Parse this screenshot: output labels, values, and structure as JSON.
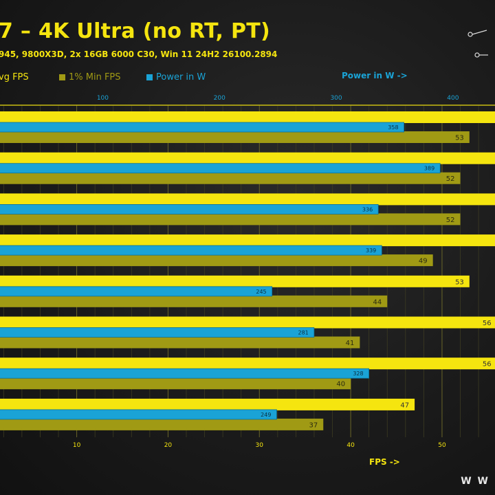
{
  "header": {
    "title": "7 – 4K Ultra (no RT, PT)",
    "subtitle": "945, 9800X3D, 2x 16GB 6000 C30, Win 11 24H2 26100.2894"
  },
  "legend": [
    {
      "label": "vg FPS",
      "color": "#f5e50f"
    },
    {
      "label": "1% Min FPS",
      "color": "#a09a14"
    },
    {
      "label": "Power in W",
      "color": "#1aa3d6"
    }
  ],
  "axes": {
    "fps_title": "FPS ->",
    "power_title": "Power in W ->"
  },
  "watermark": "W W",
  "chart_data": {
    "type": "bar",
    "orientation": "horizontal",
    "x_fps": {
      "ticks": [
        10,
        20,
        30,
        40,
        50
      ],
      "range": [
        1.6,
        55.8
      ]
    },
    "x_power": {
      "ticks": [
        100,
        200,
        300,
        400
      ],
      "range": [
        12,
        436
      ]
    },
    "grid": true,
    "rows": [
      {
        "avg": null,
        "min": 53,
        "power": 358
      },
      {
        "avg": null,
        "min": 52,
        "power": 389
      },
      {
        "avg": null,
        "min": 52,
        "power": 336
      },
      {
        "avg": null,
        "min": 49,
        "power": 339
      },
      {
        "avg": 53,
        "min": 44,
        "power": 245
      },
      {
        "avg": 56,
        "min": 41,
        "power": 281
      },
      {
        "avg": 56,
        "min": 40,
        "power": 328
      },
      {
        "avg": 47,
        "min": 37,
        "power": 249
      }
    ]
  }
}
